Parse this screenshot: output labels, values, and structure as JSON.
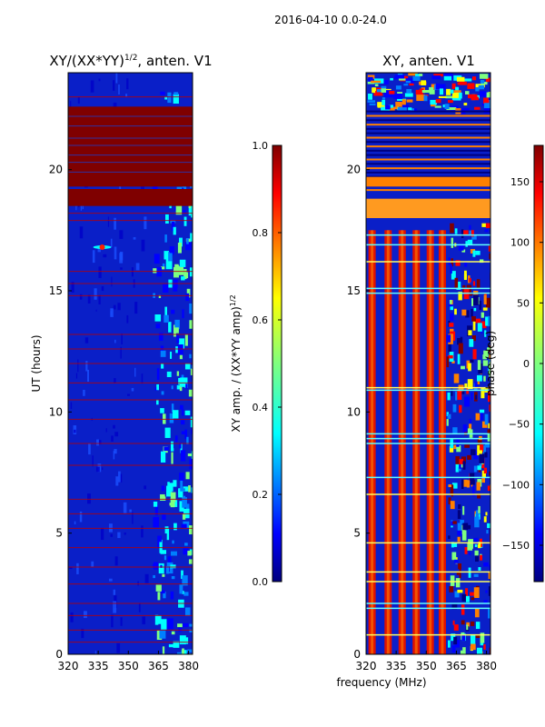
{
  "suptitle": "2016-04-10 0.0-24.0",
  "xlabel": "frequency (MHz)",
  "colormap": [
    "#00007f",
    "#0000ff",
    "#007fff",
    "#00ffff",
    "#7fff7f",
    "#ffff00",
    "#ff7f00",
    "#ff0000",
    "#7f0000"
  ],
  "chart_data": [
    {
      "type": "heatmap",
      "title": "XY/(XX*YY)",
      "title_sup": "1/2",
      "title_suffix": ", anten. V1",
      "xlabel": "",
      "ylabel": "UT (hours)",
      "xlim": [
        320,
        382
      ],
      "ylim": [
        0,
        24
      ],
      "xticks": [
        320,
        335,
        350,
        365,
        380
      ],
      "yticks": [
        0,
        5,
        10,
        15,
        20
      ],
      "colorbar": {
        "label": "XY amp. / (XX*YY amp)",
        "label_sup": "1/2",
        "range": [
          0.0,
          1.0
        ],
        "ticks": [
          "0.0",
          "0.2",
          "0.4",
          "0.6",
          "0.8",
          "1.0"
        ]
      }
    },
    {
      "type": "heatmap",
      "title": "XY, anten. V1",
      "xlabel": "frequency (MHz)",
      "ylabel": "",
      "xlim": [
        320,
        382
      ],
      "ylim": [
        0,
        24
      ],
      "xticks": [
        320,
        335,
        350,
        365,
        380
      ],
      "yticks": [
        0,
        5,
        10,
        15,
        20
      ],
      "colorbar": {
        "label": "phase (deg)",
        "range": [
          -180,
          180
        ],
        "ticks": [
          "150",
          "100",
          "50",
          "0",
          "−50",
          "−100",
          "−150"
        ]
      }
    }
  ]
}
